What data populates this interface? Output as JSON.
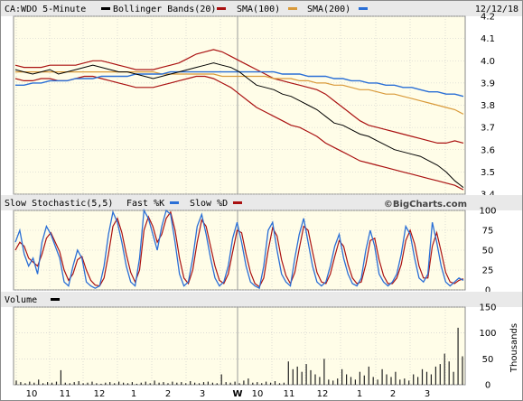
{
  "header": {
    "symbol": "CA:WDO 5-Minute",
    "date": "12/12/18",
    "legend": [
      {
        "label": "Bollinger Bands(20)",
        "color": "#000000"
      },
      {
        "label": "SMA(100)",
        "color": "#aa1111"
      },
      {
        "label": "SMA(200)",
        "color": "#d99a3a"
      }
    ]
  },
  "stoch_header": {
    "title": "Slow Stochastic(5,5)",
    "fast_label": "Fast %K",
    "slow_label": "Slow %D",
    "fast_color": "#2a6fd6",
    "slow_color": "#aa1111",
    "watermark": "©BigCharts.com"
  },
  "volume_header": {
    "title": "Volume",
    "unit_label": "Thousands"
  },
  "x_axis": {
    "labels": [
      "10",
      "11",
      "12",
      "1",
      "2",
      "3",
      "W",
      "10",
      "11",
      "12",
      "1",
      "2",
      "3"
    ],
    "day_break_label": "W"
  },
  "colors": {
    "panel_bg": "#fffde8",
    "grid": "#c9c9c9",
    "price_bar": "#000000",
    "bollinger": "#aa1111",
    "sma100": "#2a6fd6",
    "sma200": "#d99a3a",
    "volume_bar": "#222222"
  },
  "chart_data": [
    {
      "type": "line",
      "panel": "price",
      "ylim": [
        3.4,
        4.2
      ],
      "yticks": [
        3.4,
        3.5,
        3.6,
        3.7,
        3.8,
        3.9,
        4.0,
        4.1,
        4.2
      ],
      "series": [
        {
          "name": "Bollinger Bands(20)",
          "role": "price",
          "values": [
            3.96,
            3.95,
            3.94,
            3.95,
            3.96,
            3.94,
            3.95,
            3.96,
            3.97,
            3.98,
            3.97,
            3.96,
            3.95,
            3.95,
            3.94,
            3.93,
            3.92,
            3.93,
            3.94,
            3.95,
            3.96,
            3.97,
            3.98,
            3.99,
            3.98,
            3.97,
            3.95,
            3.92,
            3.89,
            3.88,
            3.87,
            3.85,
            3.84,
            3.82,
            3.8,
            3.78,
            3.75,
            3.72,
            3.71,
            3.69,
            3.67,
            3.66,
            3.64,
            3.62,
            3.6,
            3.59,
            3.58,
            3.57,
            3.55,
            3.53,
            3.5,
            3.46,
            3.43
          ]
        },
        {
          "name": "Bollinger upper",
          "role": "band_upper",
          "values": [
            3.98,
            3.97,
            3.97,
            3.97,
            3.98,
            3.98,
            3.98,
            3.98,
            3.99,
            4.0,
            4.0,
            3.99,
            3.98,
            3.97,
            3.96,
            3.96,
            3.96,
            3.97,
            3.98,
            3.99,
            4.01,
            4.03,
            4.04,
            4.05,
            4.04,
            4.02,
            4.0,
            3.98,
            3.96,
            3.94,
            3.92,
            3.91,
            3.9,
            3.89,
            3.88,
            3.87,
            3.85,
            3.82,
            3.79,
            3.76,
            3.73,
            3.71,
            3.7,
            3.69,
            3.68,
            3.67,
            3.66,
            3.65,
            3.64,
            3.63,
            3.63,
            3.64,
            3.63
          ]
        },
        {
          "name": "Bollinger lower",
          "role": "band_lower",
          "values": [
            3.92,
            3.91,
            3.91,
            3.92,
            3.92,
            3.91,
            3.91,
            3.92,
            3.93,
            3.93,
            3.92,
            3.91,
            3.9,
            3.89,
            3.88,
            3.88,
            3.88,
            3.89,
            3.9,
            3.91,
            3.92,
            3.93,
            3.93,
            3.92,
            3.9,
            3.88,
            3.85,
            3.82,
            3.79,
            3.77,
            3.75,
            3.73,
            3.71,
            3.7,
            3.68,
            3.66,
            3.63,
            3.61,
            3.59,
            3.57,
            3.55,
            3.54,
            3.53,
            3.52,
            3.51,
            3.5,
            3.49,
            3.48,
            3.47,
            3.46,
            3.45,
            3.44,
            3.42
          ]
        },
        {
          "name": "SMA(100)",
          "role": "sma100",
          "values": [
            3.89,
            3.89,
            3.9,
            3.9,
            3.91,
            3.91,
            3.91,
            3.92,
            3.92,
            3.92,
            3.93,
            3.93,
            3.93,
            3.93,
            3.94,
            3.94,
            3.94,
            3.94,
            3.95,
            3.95,
            3.95,
            3.95,
            3.95,
            3.95,
            3.95,
            3.95,
            3.95,
            3.95,
            3.95,
            3.95,
            3.95,
            3.94,
            3.94,
            3.94,
            3.93,
            3.93,
            3.93,
            3.92,
            3.92,
            3.91,
            3.91,
            3.9,
            3.9,
            3.89,
            3.89,
            3.88,
            3.88,
            3.87,
            3.86,
            3.86,
            3.85,
            3.85,
            3.84
          ]
        },
        {
          "name": "SMA(200)",
          "role": "sma200",
          "values": [
            3.95,
            3.95,
            3.95,
            3.95,
            3.95,
            3.95,
            3.95,
            3.95,
            3.95,
            3.95,
            3.95,
            3.95,
            3.95,
            3.95,
            3.95,
            3.95,
            3.95,
            3.94,
            3.94,
            3.94,
            3.94,
            3.94,
            3.94,
            3.94,
            3.93,
            3.93,
            3.93,
            3.93,
            3.93,
            3.93,
            3.92,
            3.92,
            3.92,
            3.91,
            3.91,
            3.9,
            3.9,
            3.89,
            3.89,
            3.88,
            3.87,
            3.87,
            3.86,
            3.85,
            3.85,
            3.84,
            3.83,
            3.82,
            3.81,
            3.8,
            3.79,
            3.78,
            3.76
          ]
        }
      ]
    },
    {
      "type": "line",
      "panel": "stochastic",
      "ylim": [
        0,
        100
      ],
      "yticks": [
        0,
        25,
        50,
        75,
        100
      ],
      "series": [
        {
          "name": "Fast %K",
          "values": [
            60,
            75,
            45,
            30,
            40,
            20,
            60,
            80,
            70,
            55,
            40,
            10,
            5,
            30,
            50,
            40,
            10,
            5,
            2,
            5,
            30,
            70,
            98,
            85,
            60,
            30,
            10,
            5,
            40,
            100,
            90,
            70,
            50,
            80,
            100,
            95,
            60,
            20,
            5,
            10,
            40,
            80,
            95,
            70,
            40,
            15,
            5,
            10,
            30,
            65,
            85,
            60,
            30,
            10,
            5,
            2,
            30,
            75,
            85,
            50,
            20,
            10,
            5,
            40,
            70,
            90,
            60,
            30,
            10,
            5,
            10,
            30,
            55,
            70,
            40,
            20,
            8,
            5,
            15,
            50,
            75,
            55,
            20,
            10,
            5,
            10,
            20,
            45,
            80,
            70,
            40,
            15,
            10,
            20,
            85,
            60,
            30,
            10,
            5,
            10,
            15,
            12
          ]
        },
        {
          "name": "Slow %D",
          "values": [
            50,
            60,
            55,
            40,
            35,
            30,
            45,
            65,
            72,
            60,
            48,
            25,
            12,
            20,
            38,
            42,
            25,
            12,
            6,
            5,
            15,
            45,
            80,
            90,
            72,
            45,
            22,
            10,
            25,
            75,
            92,
            80,
            60,
            70,
            90,
            98,
            75,
            40,
            15,
            8,
            25,
            60,
            88,
            80,
            55,
            30,
            12,
            8,
            20,
            48,
            75,
            72,
            45,
            22,
            8,
            4,
            15,
            50,
            78,
            68,
            38,
            18,
            8,
            22,
            52,
            80,
            75,
            48,
            22,
            10,
            8,
            20,
            42,
            62,
            55,
            32,
            15,
            8,
            10,
            32,
            62,
            65,
            38,
            18,
            8,
            8,
            15,
            32,
            62,
            75,
            58,
            30,
            15,
            15,
            55,
            72,
            48,
            22,
            10,
            8,
            12,
            14
          ]
        }
      ]
    },
    {
      "type": "bar",
      "panel": "volume",
      "ylabel": "Thousands",
      "ylim": [
        0,
        150
      ],
      "yticks": [
        0,
        50,
        100,
        150
      ],
      "values": [
        8,
        5,
        3,
        6,
        4,
        10,
        3,
        5,
        4,
        6,
        28,
        4,
        3,
        5,
        7,
        3,
        4,
        6,
        3,
        2,
        4,
        5,
        3,
        6,
        4,
        3,
        5,
        2,
        4,
        6,
        3,
        8,
        4,
        5,
        3,
        6,
        4,
        5,
        3,
        7,
        4,
        3,
        5,
        6,
        4,
        3,
        20,
        5,
        4,
        6,
        3,
        8,
        12,
        4,
        5,
        3,
        6,
        4,
        7,
        3,
        4,
        45,
        30,
        35,
        25,
        40,
        28,
        20,
        15,
        50,
        10,
        8,
        12,
        30,
        20,
        15,
        10,
        25,
        18,
        35,
        15,
        10,
        30,
        20,
        15,
        25,
        10,
        12,
        8,
        20,
        15,
        30,
        25,
        20,
        35,
        40,
        60,
        45,
        25,
        110,
        55
      ]
    }
  ]
}
